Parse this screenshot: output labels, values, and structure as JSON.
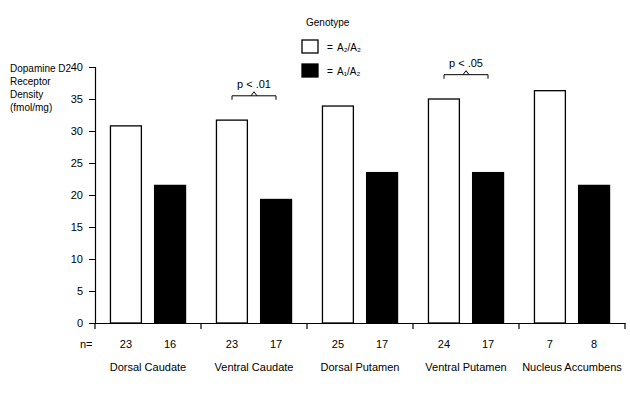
{
  "chart_data": {
    "type": "bar",
    "ylabel": [
      "Dopamine D2",
      "Receptor",
      "Density",
      "(fmol/mg)"
    ],
    "legend_title": "Genotype",
    "legend_prefix": "=",
    "legend": "top",
    "categories": [
      "Dorsal Caudate",
      "Ventral Caudate",
      "Dorsal Putamen",
      "Ventral Putamen",
      "Nucleus Accumbens"
    ],
    "series": [
      {
        "name": "A₂/A₂",
        "color": "#ffffff",
        "values": [
          30.8,
          31.7,
          33.9,
          35.0,
          36.3
        ],
        "n": [
          23,
          23,
          25,
          24,
          7
        ]
      },
      {
        "name": "A₁/A₂",
        "color": "#000000",
        "values": [
          21.5,
          19.3,
          23.5,
          23.5,
          21.5
        ],
        "n": [
          16,
          17,
          17,
          17,
          8
        ]
      }
    ],
    "n_label": "n=",
    "annotations": [
      {
        "text": "p < .01",
        "category": 1,
        "y": 35.5
      },
      {
        "text": "p < .05",
        "category": 3,
        "y": 38.8
      }
    ],
    "ylim": [
      0,
      40
    ],
    "yticks": [
      0,
      5,
      10,
      15,
      20,
      25,
      30,
      35,
      40
    ]
  }
}
